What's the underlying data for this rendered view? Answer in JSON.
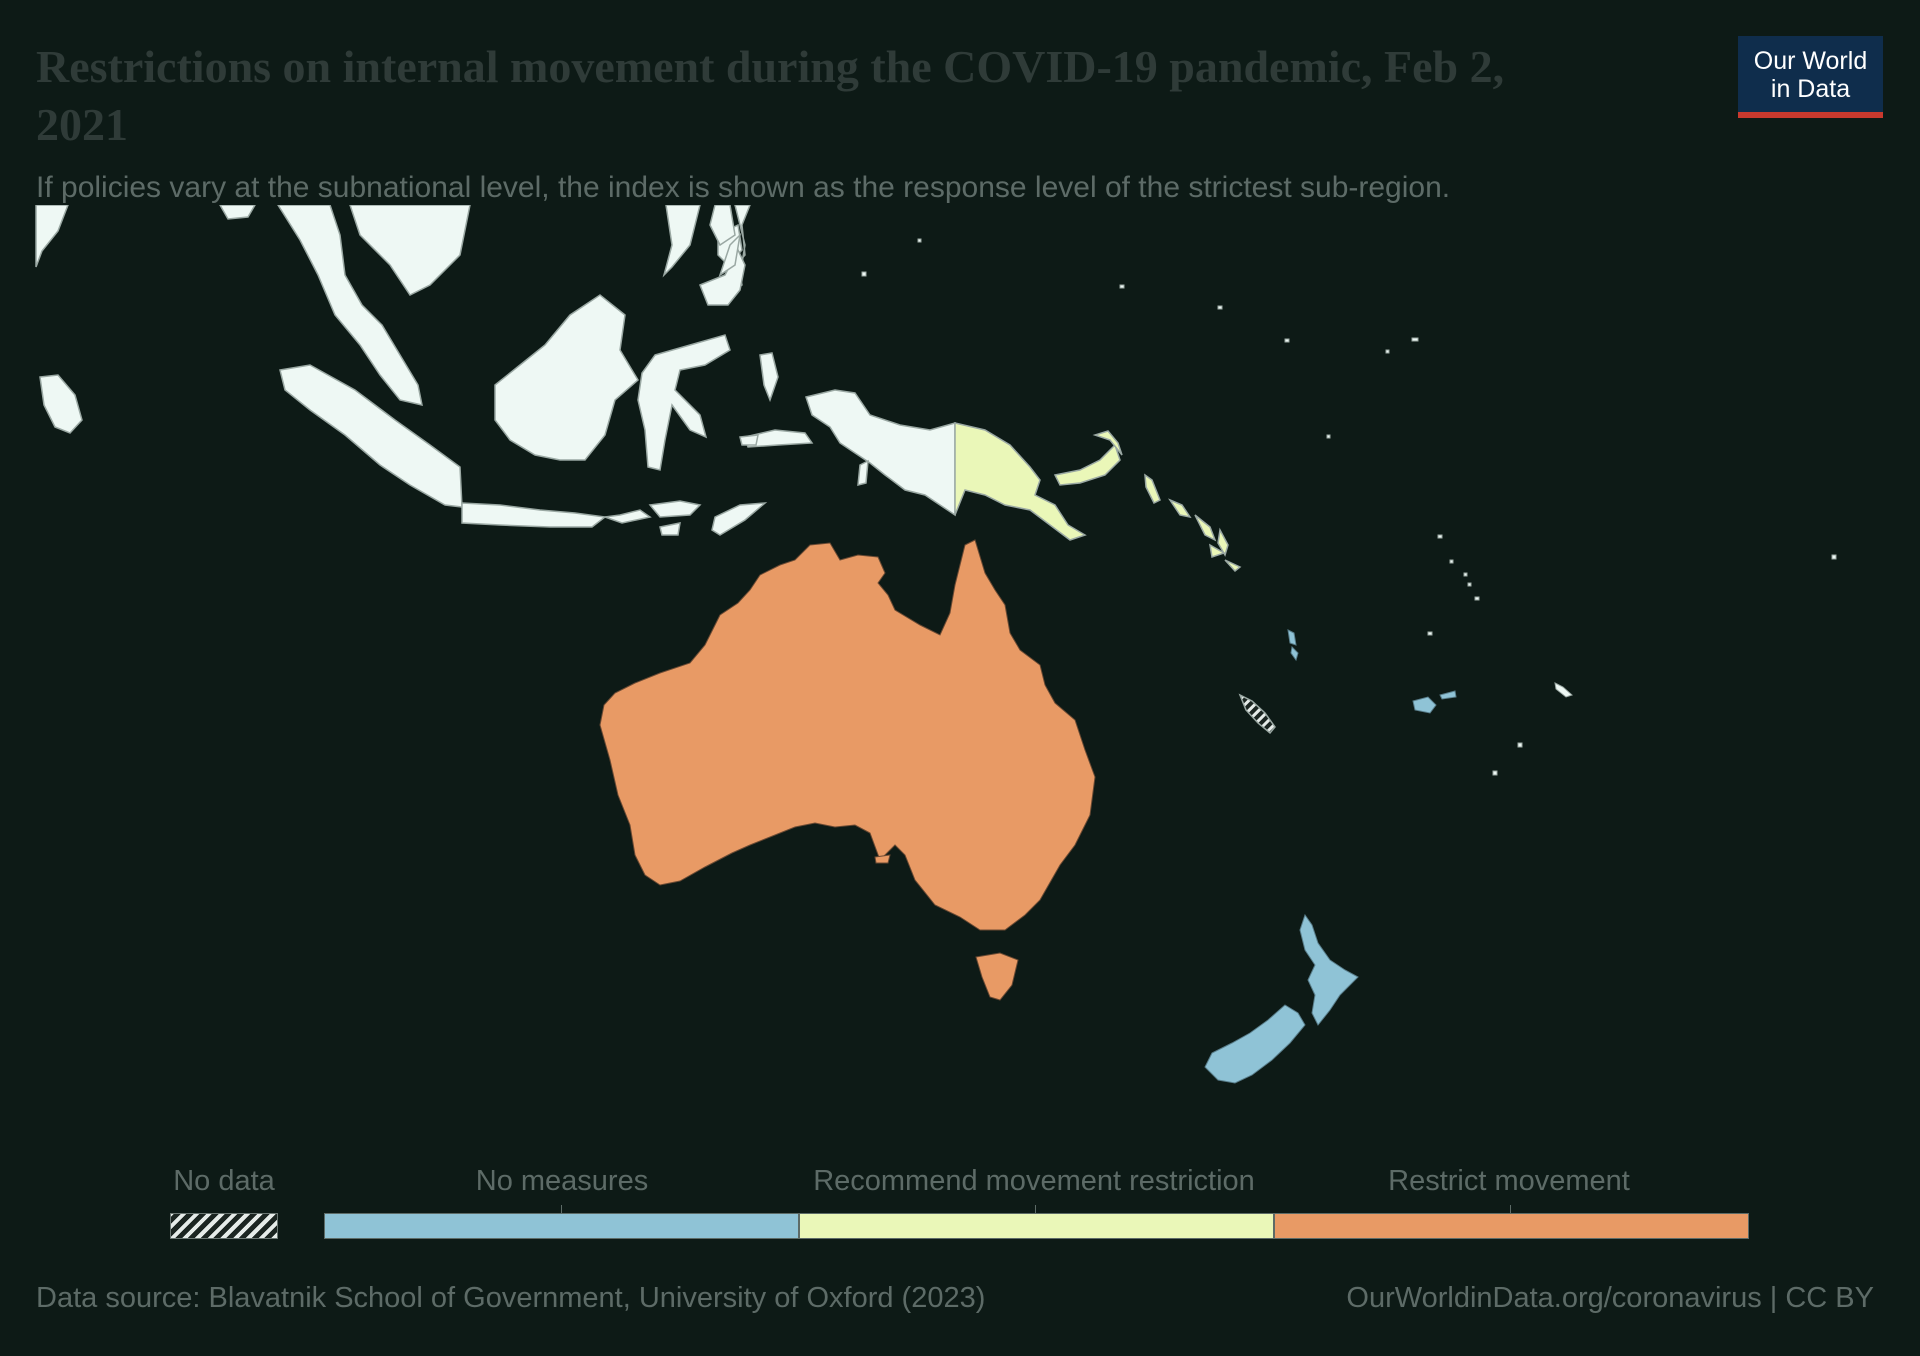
{
  "header": {
    "title": "Restrictions on internal movement during the COVID-19 pandemic, Feb 2, 2021",
    "subtitle": "If policies vary at the subnational level, the index is shown as the response level of the strictest sub-region."
  },
  "logo": {
    "line1": "Our World",
    "line2": "in Data",
    "bg": "#0f2d4c",
    "accent": "#c8392e"
  },
  "legend": {
    "no_data": {
      "label": "No data",
      "pattern": "hatched"
    },
    "bins": [
      {
        "label": "No measures",
        "color": "#8fc3d6"
      },
      {
        "label": "Recommend movement restriction",
        "color": "#eaf7b8"
      },
      {
        "label": "Restrict movement",
        "color": "#e89a65"
      }
    ]
  },
  "map": {
    "region": "Oceania",
    "countries": [
      {
        "name": "Australia",
        "status": "Restrict movement",
        "color": "#e89a65"
      },
      {
        "name": "Papua New Guinea",
        "status": "Recommend movement restriction",
        "color": "#eaf7b8"
      },
      {
        "name": "Solomon Islands",
        "status": "Recommend movement restriction",
        "color": "#eaf7b8"
      },
      {
        "name": "New Zealand",
        "status": "No measures",
        "color": "#8fc3d6"
      },
      {
        "name": "Fiji",
        "status": "No measures",
        "color": "#8fc3d6"
      },
      {
        "name": "Vanuatu",
        "status": "No measures",
        "color": "#8fc3d6"
      },
      {
        "name": "New Caledonia",
        "status": "No data",
        "color": "hatched"
      },
      {
        "name": "Indonesia",
        "status": "not highlighted",
        "color": "#eef8f4"
      },
      {
        "name": "Malaysia",
        "status": "not highlighted",
        "color": "#eef8f4"
      },
      {
        "name": "Philippines",
        "status": "not highlighted",
        "color": "#eef8f4"
      },
      {
        "name": "Timor-Leste",
        "status": "not highlighted",
        "color": "#eef8f4"
      }
    ]
  },
  "footer": {
    "source": "Data source: Blavatnik School of Government, University of Oxford (2023)",
    "url": "OurWorldinData.org/coronavirus | CC BY"
  }
}
